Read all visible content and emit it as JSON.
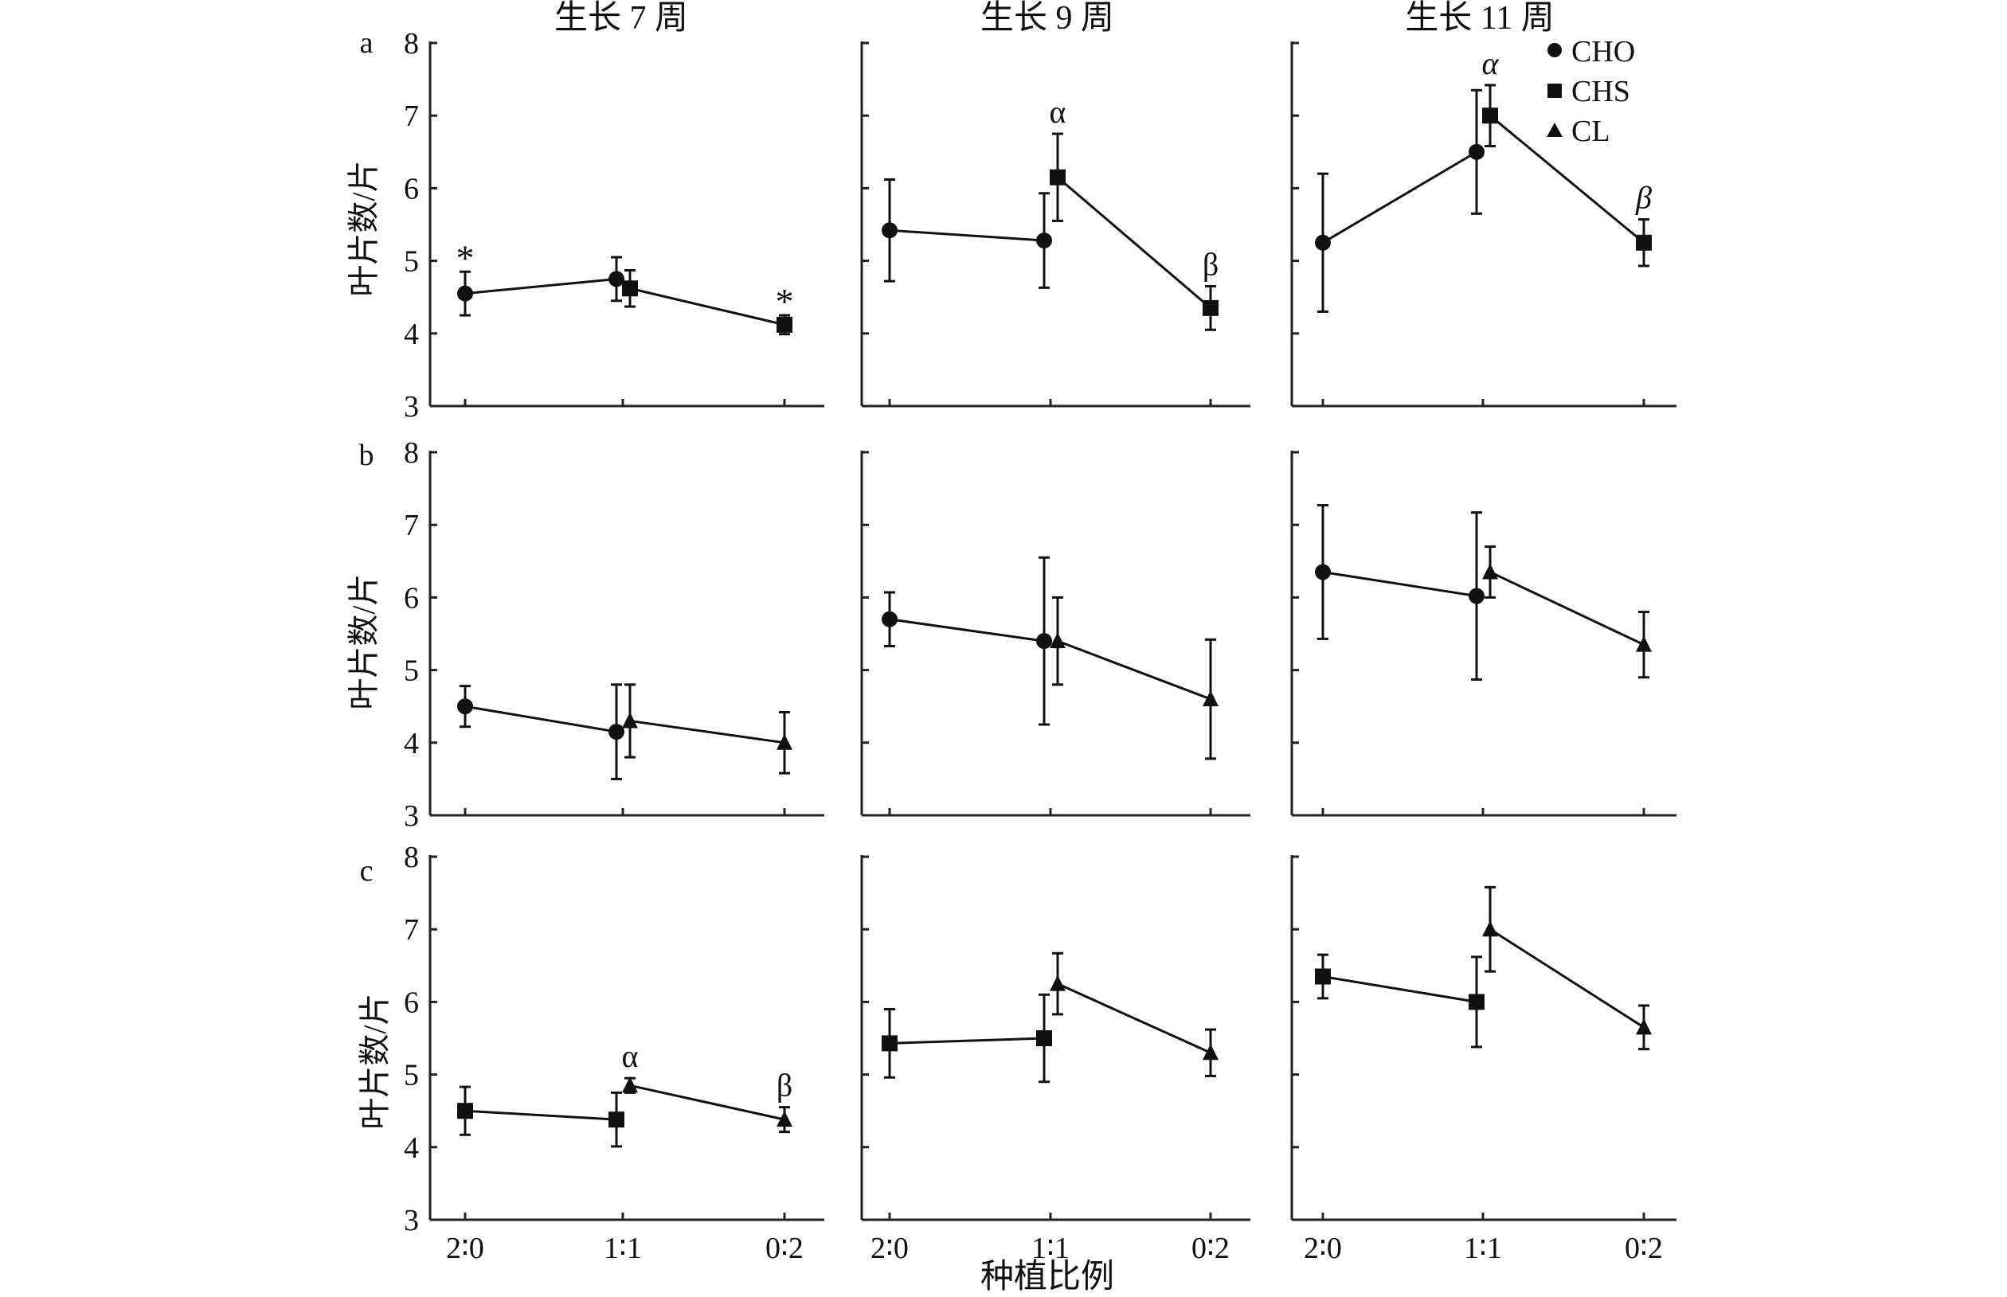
{
  "figure": {
    "xlabel": "种植比例",
    "ylabel": "叶片数/片",
    "column_titles": [
      "生长 7 周",
      "生长 9 周",
      "生长 11 周"
    ],
    "row_labels": [
      "a",
      "b",
      "c"
    ]
  },
  "legend": {
    "placement": "top-right of top-right panel",
    "items": [
      {
        "label": "CHO",
        "marker": "circle"
      },
      {
        "label": "CHS",
        "marker": "square"
      },
      {
        "label": "CL",
        "marker": "triangle"
      }
    ]
  },
  "chart_data": [
    {
      "panel": "a-7",
      "type": "line",
      "row": 0,
      "col": 0,
      "categories": [
        "2∶0",
        "1∶1",
        "0∶2"
      ],
      "ylim": [
        3,
        8
      ],
      "yticks": [
        3,
        4,
        5,
        6,
        7,
        8
      ],
      "grid": false,
      "series": [
        {
          "name": "CHO",
          "marker": "circle",
          "points": [
            {
              "x": 0,
              "y": 4.55,
              "err": 0.3,
              "label": "*"
            },
            {
              "x": 1,
              "y": 4.75,
              "err": 0.3
            }
          ]
        },
        {
          "name": "CHS",
          "marker": "square",
          "points": [
            {
              "x": 1,
              "y": 4.62,
              "err": 0.25
            },
            {
              "x": 2,
              "y": 4.12,
              "err": 0.13,
              "label": "*"
            }
          ]
        }
      ]
    },
    {
      "panel": "a-9",
      "type": "line",
      "row": 0,
      "col": 1,
      "categories": [
        "2∶0",
        "1∶1",
        "0∶2"
      ],
      "ylim": [
        3,
        8
      ],
      "yticks": [
        3,
        4,
        5,
        6,
        7,
        8
      ],
      "grid": false,
      "series": [
        {
          "name": "CHO",
          "marker": "circle",
          "points": [
            {
              "x": 0,
              "y": 5.42,
              "err": 0.7
            },
            {
              "x": 1,
              "y": 5.28,
              "err": 0.65
            }
          ]
        },
        {
          "name": "CHS",
          "marker": "square",
          "points": [
            {
              "x": 1,
              "y": 6.15,
              "err": 0.6,
              "label": "α"
            },
            {
              "x": 2,
              "y": 4.35,
              "err": 0.3,
              "label": "β"
            }
          ]
        }
      ]
    },
    {
      "panel": "a-11",
      "type": "line",
      "row": 0,
      "col": 2,
      "categories": [
        "2∶0",
        "1∶1",
        "0∶2"
      ],
      "ylim": [
        3,
        8
      ],
      "yticks": [
        3,
        4,
        5,
        6,
        7,
        8
      ],
      "grid": false,
      "series": [
        {
          "name": "CHO",
          "marker": "circle",
          "points": [
            {
              "x": 0,
              "y": 5.25,
              "err": 0.95
            },
            {
              "x": 1,
              "y": 6.5,
              "err": 0.85
            }
          ]
        },
        {
          "name": "CHS",
          "marker": "square",
          "points": [
            {
              "x": 1,
              "y": 7.0,
              "err": 0.42,
              "label": "α",
              "italic": true
            },
            {
              "x": 2,
              "y": 5.25,
              "err": 0.32,
              "label": "β",
              "italic": true
            }
          ]
        }
      ]
    },
    {
      "panel": "b-7",
      "type": "line",
      "row": 1,
      "col": 0,
      "categories": [
        "2∶0",
        "1∶1",
        "0∶2"
      ],
      "ylim": [
        3,
        8
      ],
      "yticks": [
        3,
        4,
        5,
        6,
        7,
        8
      ],
      "grid": false,
      "series": [
        {
          "name": "CHO",
          "marker": "circle",
          "points": [
            {
              "x": 0,
              "y": 4.5,
              "err": 0.28
            },
            {
              "x": 1,
              "y": 4.15,
              "err": 0.65
            }
          ]
        },
        {
          "name": "CL",
          "marker": "triangle",
          "points": [
            {
              "x": 1,
              "y": 4.3,
              "err": 0.5
            },
            {
              "x": 2,
              "y": 4.0,
              "err": 0.42
            }
          ]
        }
      ]
    },
    {
      "panel": "b-9",
      "type": "line",
      "row": 1,
      "col": 1,
      "categories": [
        "2∶0",
        "1∶1",
        "0∶2"
      ],
      "ylim": [
        3,
        8
      ],
      "yticks": [
        3,
        4,
        5,
        6,
        7,
        8
      ],
      "grid": false,
      "series": [
        {
          "name": "CHO",
          "marker": "circle",
          "points": [
            {
              "x": 0,
              "y": 5.7,
              "err": 0.37
            },
            {
              "x": 1,
              "y": 5.4,
              "err": 1.15
            }
          ]
        },
        {
          "name": "CL",
          "marker": "triangle",
          "points": [
            {
              "x": 1,
              "y": 5.4,
              "err": 0.6
            },
            {
              "x": 2,
              "y": 4.6,
              "err": 0.82
            }
          ]
        }
      ]
    },
    {
      "panel": "b-11",
      "type": "line",
      "row": 1,
      "col": 2,
      "categories": [
        "2∶0",
        "1∶1",
        "0∶2"
      ],
      "ylim": [
        3,
        8
      ],
      "yticks": [
        3,
        4,
        5,
        6,
        7,
        8
      ],
      "grid": false,
      "series": [
        {
          "name": "CHO",
          "marker": "circle",
          "points": [
            {
              "x": 0,
              "y": 6.35,
              "err": 0.92
            },
            {
              "x": 1,
              "y": 6.02,
              "err": 1.15
            }
          ]
        },
        {
          "name": "CL",
          "marker": "triangle",
          "points": [
            {
              "x": 1,
              "y": 6.35,
              "err": 0.35
            },
            {
              "x": 2,
              "y": 5.35,
              "err": 0.45
            }
          ]
        }
      ]
    },
    {
      "panel": "c-7",
      "type": "line",
      "row": 2,
      "col": 0,
      "categories": [
        "2∶0",
        "1∶1",
        "0∶2"
      ],
      "ylim": [
        3,
        8
      ],
      "yticks": [
        3,
        4,
        5,
        6,
        7,
        8
      ],
      "grid": false,
      "series": [
        {
          "name": "CHS",
          "marker": "square",
          "points": [
            {
              "x": 0,
              "y": 4.5,
              "err": 0.33
            },
            {
              "x": 1,
              "y": 4.38,
              "err": 0.37
            }
          ]
        },
        {
          "name": "CL",
          "marker": "triangle",
          "points": [
            {
              "x": 1,
              "y": 4.85,
              "err": 0.1,
              "label": "α"
            },
            {
              "x": 2,
              "y": 4.38,
              "err": 0.17,
              "label": "β"
            }
          ]
        }
      ]
    },
    {
      "panel": "c-9",
      "type": "line",
      "row": 2,
      "col": 1,
      "categories": [
        "2∶0",
        "1∶1",
        "0∶2"
      ],
      "ylim": [
        3,
        8
      ],
      "yticks": [
        3,
        4,
        5,
        6,
        7,
        8
      ],
      "grid": false,
      "series": [
        {
          "name": "CHS",
          "marker": "square",
          "points": [
            {
              "x": 0,
              "y": 5.43,
              "err": 0.47
            },
            {
              "x": 1,
              "y": 5.5,
              "err": 0.6
            }
          ]
        },
        {
          "name": "CL",
          "marker": "triangle",
          "points": [
            {
              "x": 1,
              "y": 6.25,
              "err": 0.42
            },
            {
              "x": 2,
              "y": 5.3,
              "err": 0.32
            }
          ]
        }
      ]
    },
    {
      "panel": "c-11",
      "type": "line",
      "row": 2,
      "col": 2,
      "categories": [
        "2∶0",
        "1∶1",
        "0∶2"
      ],
      "ylim": [
        3,
        8
      ],
      "yticks": [
        3,
        4,
        5,
        6,
        7,
        8
      ],
      "grid": false,
      "series": [
        {
          "name": "CHS",
          "marker": "square",
          "points": [
            {
              "x": 0,
              "y": 6.35,
              "err": 0.3
            },
            {
              "x": 1,
              "y": 6.0,
              "err": 0.62
            }
          ]
        },
        {
          "name": "CL",
          "marker": "triangle",
          "points": [
            {
              "x": 1,
              "y": 7.0,
              "err": 0.58
            },
            {
              "x": 2,
              "y": 5.65,
              "err": 0.3
            }
          ]
        }
      ]
    }
  ]
}
